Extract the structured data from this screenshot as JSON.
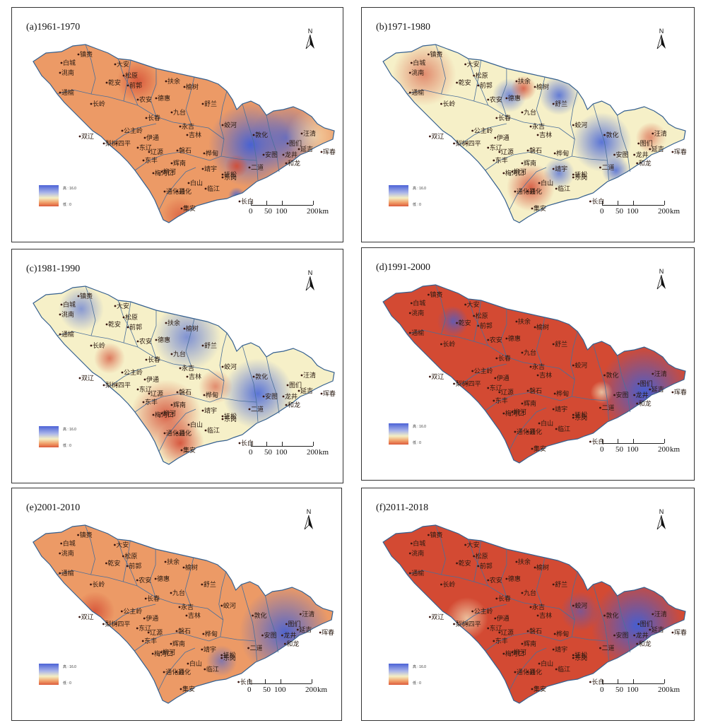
{
  "panels": [
    {
      "title": "(a)1961-1970"
    },
    {
      "title": "(b)1971-1980"
    },
    {
      "title": "(c)1981-1990"
    },
    {
      "title": "(d)1991-2000"
    },
    {
      "title": "(e)2001-2010"
    },
    {
      "title": "(f)2011-2018"
    }
  ],
  "north_label": "N",
  "legend": {
    "high": "高 : 16.0",
    "low": "低 : 0"
  },
  "scale_bar": {
    "labels": [
      "0",
      "50",
      "100",
      "200"
    ],
    "unit": "km"
  },
  "cities": [
    "镇赉",
    "白城",
    "大安",
    "洮南",
    "乾安",
    "前郭",
    "松原",
    "扶余",
    "榆树",
    "通榆",
    "长岭",
    "农安",
    "德惠",
    "舒兰",
    "九台",
    "长春",
    "双辽",
    "公主岭",
    "伊通",
    "永吉",
    "吉林",
    "蛟河",
    "敦化",
    "汪清",
    "图们",
    "安图",
    "龙井",
    "延吉",
    "珲春",
    "和龙",
    "梨树",
    "四平",
    "东辽",
    "辽源",
    "东丰",
    "磐石",
    "桦甸",
    "辉南",
    "柳河",
    "梅河口",
    "通化",
    "靖宇",
    "抚松",
    "白山",
    "临江",
    "东岗",
    "二道",
    "长白",
    "集安",
    "通化县"
  ],
  "colors": {
    "blue": "#3f5fd8",
    "cream": "#f6f0c8",
    "orange": "#ec9a66",
    "red": "#d34a33"
  },
  "icons": {
    "north_arrow": "north-arrow-icon"
  }
}
